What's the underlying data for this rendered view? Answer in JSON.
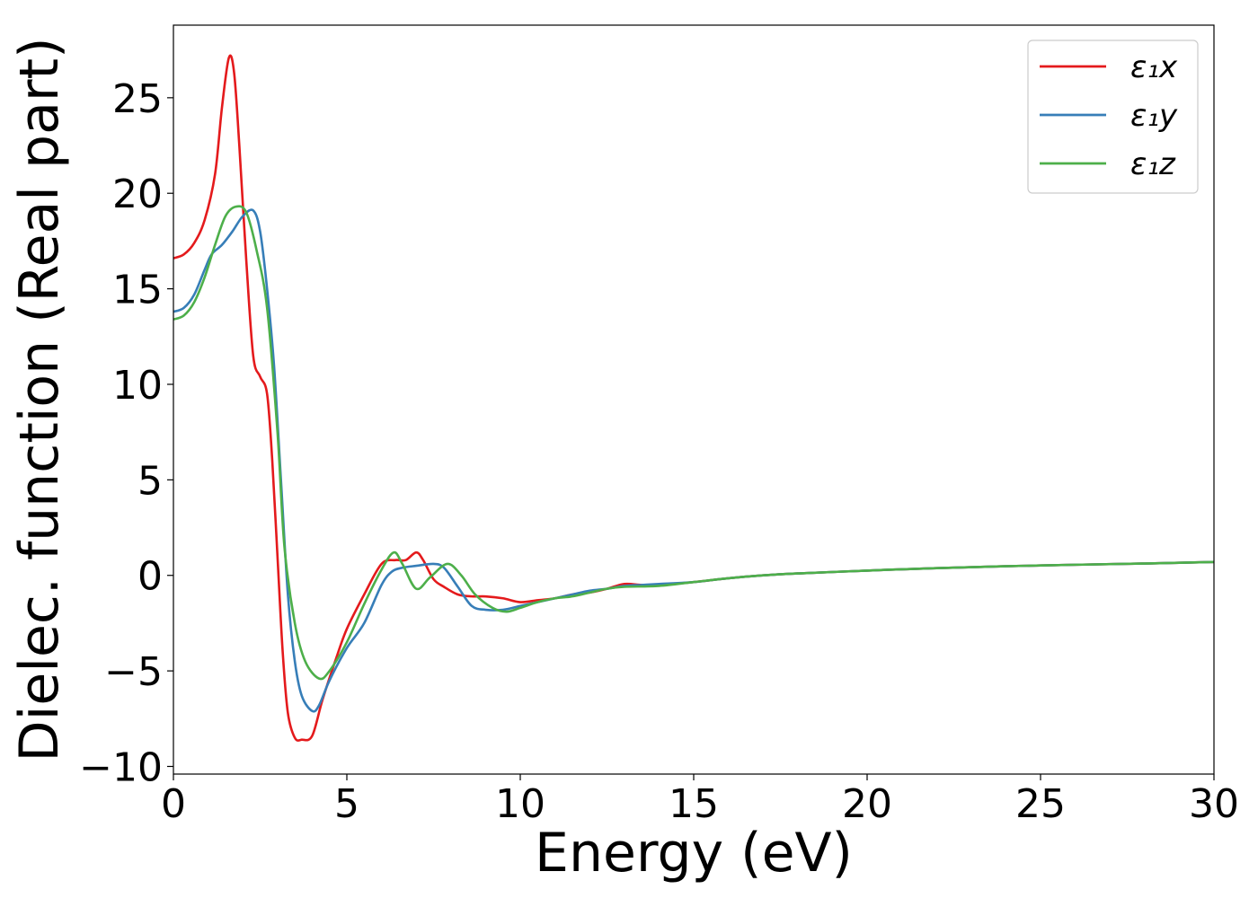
{
  "chart_data": {
    "type": "line",
    "title": "",
    "xlabel": "Energy (eV)",
    "ylabel": "Dielec. function (Real part)",
    "xlim": [
      0,
      30
    ],
    "ylim": [
      -10.4,
      28.8
    ],
    "xticks": [
      0,
      5,
      10,
      15,
      20,
      25,
      30
    ],
    "xtick_labels": [
      "0",
      "5",
      "10",
      "15",
      "20",
      "25",
      "30"
    ],
    "yticks": [
      -10,
      -5,
      0,
      5,
      10,
      15,
      20,
      25
    ],
    "ytick_labels": [
      "−10",
      "−5",
      "0",
      "5",
      "10",
      "15",
      "20",
      "25"
    ],
    "grid": false,
    "legend_position": "top-right",
    "series": [
      {
        "name": "ε₁x",
        "color": "#e41a1c",
        "points": [
          [
            0,
            16.6
          ],
          [
            0.3,
            16.8
          ],
          [
            0.6,
            17.4
          ],
          [
            0.9,
            18.6
          ],
          [
            1.2,
            21.0
          ],
          [
            1.4,
            24.5
          ],
          [
            1.6,
            27.1
          ],
          [
            1.75,
            26.3
          ],
          [
            1.9,
            22.5
          ],
          [
            2.1,
            16.5
          ],
          [
            2.3,
            11.5
          ],
          [
            2.5,
            10.4
          ],
          [
            2.7,
            9.5
          ],
          [
            2.85,
            6.0
          ],
          [
            3.0,
            1.0
          ],
          [
            3.15,
            -4.0
          ],
          [
            3.3,
            -7.2
          ],
          [
            3.5,
            -8.5
          ],
          [
            3.7,
            -8.6
          ],
          [
            4.0,
            -8.4
          ],
          [
            4.3,
            -6.5
          ],
          [
            4.7,
            -4.3
          ],
          [
            5.0,
            -2.8
          ],
          [
            5.5,
            -1.0
          ],
          [
            6.0,
            0.6
          ],
          [
            6.4,
            0.8
          ],
          [
            6.7,
            0.8
          ],
          [
            7.0,
            1.2
          ],
          [
            7.2,
            0.8
          ],
          [
            7.5,
            -0.2
          ],
          [
            7.8,
            -0.6
          ],
          [
            8.2,
            -1.0
          ],
          [
            8.6,
            -1.1
          ],
          [
            9.0,
            -1.1
          ],
          [
            9.5,
            -1.2
          ],
          [
            10.0,
            -1.4
          ],
          [
            10.5,
            -1.3
          ],
          [
            11.0,
            -1.2
          ],
          [
            11.5,
            -1.0
          ],
          [
            12.0,
            -0.9
          ],
          [
            12.5,
            -0.7
          ],
          [
            13.0,
            -0.45
          ],
          [
            13.5,
            -0.5
          ],
          [
            14.0,
            -0.5
          ],
          [
            15.0,
            -0.35
          ],
          [
            16.0,
            -0.15
          ],
          [
            17.0,
            0.0
          ],
          [
            18.0,
            0.1
          ],
          [
            20.0,
            0.25
          ],
          [
            22.0,
            0.38
          ],
          [
            25.0,
            0.52
          ],
          [
            28.0,
            0.62
          ],
          [
            30.0,
            0.7
          ]
        ]
      },
      {
        "name": "ε₁y",
        "color": "#377eb8",
        "points": [
          [
            0,
            13.8
          ],
          [
            0.3,
            14.0
          ],
          [
            0.6,
            14.7
          ],
          [
            0.9,
            16.0
          ],
          [
            1.1,
            16.8
          ],
          [
            1.4,
            17.3
          ],
          [
            1.7,
            18.0
          ],
          [
            2.0,
            18.8
          ],
          [
            2.3,
            19.1
          ],
          [
            2.5,
            18.0
          ],
          [
            2.7,
            15.0
          ],
          [
            2.9,
            11.0
          ],
          [
            3.1,
            5.0
          ],
          [
            3.3,
            -1.0
          ],
          [
            3.5,
            -4.5
          ],
          [
            3.7,
            -6.3
          ],
          [
            4.0,
            -7.1
          ],
          [
            4.2,
            -6.8
          ],
          [
            4.5,
            -5.5
          ],
          [
            5.0,
            -3.8
          ],
          [
            5.5,
            -2.5
          ],
          [
            6.0,
            -0.5
          ],
          [
            6.3,
            0.2
          ],
          [
            6.6,
            0.4
          ],
          [
            7.0,
            0.5
          ],
          [
            7.5,
            0.6
          ],
          [
            7.8,
            0.4
          ],
          [
            8.2,
            -0.6
          ],
          [
            8.6,
            -1.6
          ],
          [
            9.0,
            -1.8
          ],
          [
            9.5,
            -1.8
          ],
          [
            10.0,
            -1.6
          ],
          [
            10.5,
            -1.4
          ],
          [
            11.0,
            -1.2
          ],
          [
            11.5,
            -1.0
          ],
          [
            12.0,
            -0.8
          ],
          [
            12.5,
            -0.7
          ],
          [
            13.0,
            -0.55
          ],
          [
            13.5,
            -0.5
          ],
          [
            14.0,
            -0.45
          ],
          [
            15.0,
            -0.35
          ],
          [
            16.0,
            -0.15
          ],
          [
            17.0,
            0.0
          ],
          [
            18.0,
            0.1
          ],
          [
            20.0,
            0.25
          ],
          [
            22.0,
            0.38
          ],
          [
            25.0,
            0.52
          ],
          [
            28.0,
            0.62
          ],
          [
            30.0,
            0.7
          ]
        ]
      },
      {
        "name": "ε₁z",
        "color": "#4daf4a",
        "points": [
          [
            0,
            13.4
          ],
          [
            0.3,
            13.6
          ],
          [
            0.6,
            14.3
          ],
          [
            0.9,
            15.6
          ],
          [
            1.2,
            17.3
          ],
          [
            1.5,
            18.8
          ],
          [
            1.8,
            19.3
          ],
          [
            2.1,
            19.0
          ],
          [
            2.4,
            17.0
          ],
          [
            2.7,
            14.0
          ],
          [
            3.0,
            7.5
          ],
          [
            3.2,
            1.5
          ],
          [
            3.5,
            -2.5
          ],
          [
            3.8,
            -4.5
          ],
          [
            4.2,
            -5.4
          ],
          [
            4.5,
            -5.0
          ],
          [
            5.0,
            -3.5
          ],
          [
            5.5,
            -1.5
          ],
          [
            6.0,
            0.3
          ],
          [
            6.35,
            1.2
          ],
          [
            6.6,
            0.6
          ],
          [
            7.0,
            -0.7
          ],
          [
            7.4,
            -0.1
          ],
          [
            7.9,
            0.6
          ],
          [
            8.3,
            0.0
          ],
          [
            8.7,
            -1.0
          ],
          [
            9.2,
            -1.7
          ],
          [
            9.6,
            -1.9
          ],
          [
            10.0,
            -1.7
          ],
          [
            10.5,
            -1.4
          ],
          [
            11.0,
            -1.2
          ],
          [
            11.5,
            -1.1
          ],
          [
            12.0,
            -0.9
          ],
          [
            12.5,
            -0.7
          ],
          [
            13.0,
            -0.6
          ],
          [
            14.0,
            -0.55
          ],
          [
            15.0,
            -0.35
          ],
          [
            16.0,
            -0.15
          ],
          [
            17.0,
            0.0
          ],
          [
            18.0,
            0.1
          ],
          [
            20.0,
            0.25
          ],
          [
            22.0,
            0.38
          ],
          [
            25.0,
            0.52
          ],
          [
            28.0,
            0.62
          ],
          [
            30.0,
            0.7
          ]
        ]
      }
    ]
  }
}
